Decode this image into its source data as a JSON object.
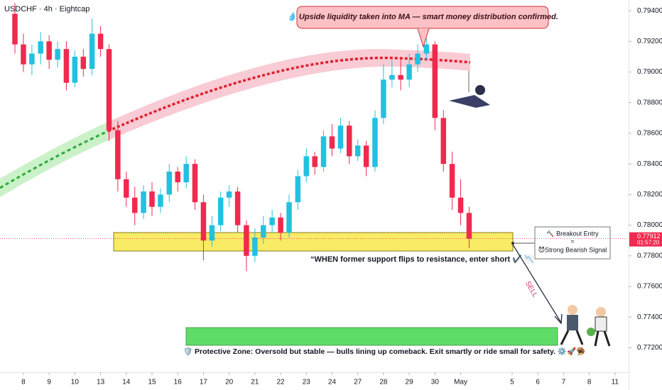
{
  "chart_data": {
    "type": "candlestick",
    "title": "USDCHF · 4h · Eightcap",
    "x": [
      -0.33,
      0,
      0.33,
      0.67,
      1,
      1.33,
      1.67,
      2,
      2.33,
      2.67,
      3,
      3.33,
      3.67,
      4,
      4.33,
      4.67,
      5,
      5.33,
      5.67,
      6,
      6.33,
      6.67,
      7,
      7.33,
      7.67,
      8,
      8.33,
      8.67,
      9,
      9.33,
      9.67,
      10,
      10.33,
      10.67,
      11,
      11.33,
      11.67,
      12,
      12.33,
      12.67,
      13,
      13.33,
      13.67,
      14,
      14.33,
      14.67,
      15,
      15.33,
      15.67,
      16,
      16.33,
      16.67,
      17,
      17.33
    ],
    "open": [
      0.7938,
      0.7918,
      0.7905,
      0.7912,
      0.792,
      0.7908,
      0.7915,
      0.7893,
      0.791,
      0.7902,
      0.7925,
      0.7915,
      0.7862,
      0.783,
      0.7818,
      0.7808,
      0.7822,
      0.7812,
      0.782,
      0.7835,
      0.7828,
      0.784,
      0.7815,
      0.779,
      0.78,
      0.7818,
      0.7822,
      0.78,
      0.778,
      0.7792,
      0.78,
      0.7805,
      0.7795,
      0.7815,
      0.7832,
      0.7845,
      0.7838,
      0.7858,
      0.785,
      0.7865,
      0.7845,
      0.7852,
      0.7838,
      0.787,
      0.7895,
      0.7898,
      0.7895,
      0.7905,
      0.7912,
      0.7918,
      0.787,
      0.784,
      0.7818,
      0.7808
    ],
    "high": [
      0.7945,
      0.7925,
      0.7918,
      0.7926,
      0.7924,
      0.792,
      0.792,
      0.7914,
      0.7915,
      0.7935,
      0.793,
      0.7918,
      0.7868,
      0.7835,
      0.7825,
      0.7826,
      0.7828,
      0.7824,
      0.784,
      0.7838,
      0.7845,
      0.7843,
      0.782,
      0.7806,
      0.7822,
      0.7826,
      0.7825,
      0.7803,
      0.7798,
      0.7806,
      0.781,
      0.7808,
      0.782,
      0.7836,
      0.785,
      0.7848,
      0.7862,
      0.7866,
      0.787,
      0.7868,
      0.7856,
      0.7855,
      0.7875,
      0.7905,
      0.7908,
      0.7908,
      0.7912,
      0.7918,
      0.7922,
      0.792,
      0.7875,
      0.7848,
      0.783,
      0.7812
    ],
    "low": [
      0.7912,
      0.79,
      0.7898,
      0.7905,
      0.7902,
      0.7903,
      0.7888,
      0.789,
      0.7897,
      0.7898,
      0.791,
      0.7855,
      0.7822,
      0.7812,
      0.78,
      0.7804,
      0.7806,
      0.7808,
      0.7815,
      0.7822,
      0.7824,
      0.781,
      0.7777,
      0.7786,
      0.7796,
      0.7812,
      0.7795,
      0.777,
      0.7776,
      0.7788,
      0.7795,
      0.779,
      0.7792,
      0.781,
      0.7828,
      0.7833,
      0.7835,
      0.7845,
      0.7847,
      0.784,
      0.7842,
      0.7832,
      0.7835,
      0.7866,
      0.789,
      0.7888,
      0.789,
      0.79,
      0.7908,
      0.7862,
      0.7835,
      0.781,
      0.78,
      0.7785
    ],
    "close": [
      0.7918,
      0.7905,
      0.7912,
      0.792,
      0.7908,
      0.7915,
      0.7893,
      0.791,
      0.7902,
      0.7925,
      0.7915,
      0.7862,
      0.783,
      0.7818,
      0.7808,
      0.7822,
      0.7812,
      0.782,
      0.7835,
      0.7828,
      0.784,
      0.7815,
      0.779,
      0.78,
      0.7818,
      0.7822,
      0.78,
      0.778,
      0.7792,
      0.78,
      0.7805,
      0.7795,
      0.7815,
      0.7832,
      0.7845,
      0.7838,
      0.7858,
      0.785,
      0.7865,
      0.7845,
      0.7852,
      0.7838,
      0.787,
      0.7895,
      0.7898,
      0.7895,
      0.7905,
      0.7912,
      0.7918,
      0.787,
      0.784,
      0.7818,
      0.7808,
      0.77912
    ],
    "up_color": "#22c1e0",
    "down_color": "#f0294e",
    "xlim": [
      -0.91,
      23.53
    ],
    "xticks": [
      {
        "value": 0,
        "label": "8"
      },
      {
        "value": 1,
        "label": "9"
      },
      {
        "value": 2,
        "label": "10"
      },
      {
        "value": 3,
        "label": "13"
      },
      {
        "value": 4,
        "label": "14"
      },
      {
        "value": 5,
        "label": "15"
      },
      {
        "value": 6,
        "label": "16"
      },
      {
        "value": 7,
        "label": "17"
      },
      {
        "value": 8,
        "label": "20"
      },
      {
        "value": 9,
        "label": "21"
      },
      {
        "value": 10,
        "label": "22"
      },
      {
        "value": 11,
        "label": "23"
      },
      {
        "value": 12,
        "label": "24"
      },
      {
        "value": 13,
        "label": "27"
      },
      {
        "value": 14,
        "label": "28"
      },
      {
        "value": 15,
        "label": "29"
      },
      {
        "value": 16,
        "label": "30"
      },
      {
        "value": 17,
        "label": "May"
      },
      {
        "value": 19,
        "label": "5"
      },
      {
        "value": 20,
        "label": "6"
      },
      {
        "value": 21,
        "label": "7"
      },
      {
        "value": 22,
        "label": "8"
      },
      {
        "value": 23,
        "label": "11"
      }
    ],
    "ylim": [
      0.7704,
      0.7947
    ],
    "yticks": [
      {
        "value": 0.794,
        "label": "0.79400"
      },
      {
        "value": 0.792,
        "label": "0.79200"
      },
      {
        "value": 0.79,
        "label": "0.79000"
      },
      {
        "value": 0.788,
        "label": "0.78800"
      },
      {
        "value": 0.786,
        "label": "0.78600"
      },
      {
        "value": 0.784,
        "label": "0.78400"
      },
      {
        "value": 0.782,
        "label": "0.78200"
      },
      {
        "value": 0.78,
        "label": "0.78000"
      },
      {
        "value": 0.778,
        "label": "0.77800"
      },
      {
        "value": 0.776,
        "label": "0.77600"
      },
      {
        "value": 0.774,
        "label": "0.77400"
      },
      {
        "value": 0.772,
        "label": "0.77200"
      }
    ],
    "last_price": 0.77912,
    "countdown": "01:57:20",
    "annotation": "💧 Upside liquidity taken into MA — smart money distribution confirmed.",
    "quote": "“WHEN former support flips to resistance, enter short ✔️ 📉",
    "entry_label": [
      "🔨 Breakout Entry",
      "=",
      "😈Strong Bearish Signal"
    ],
    "sell_label": "SELL",
    "zone_label": "🛡️ Protective Zone: Oversold but stable — bulls lining up comeback. Exit smartly or ride small for safety. ⚙️🚀🪤"
  }
}
